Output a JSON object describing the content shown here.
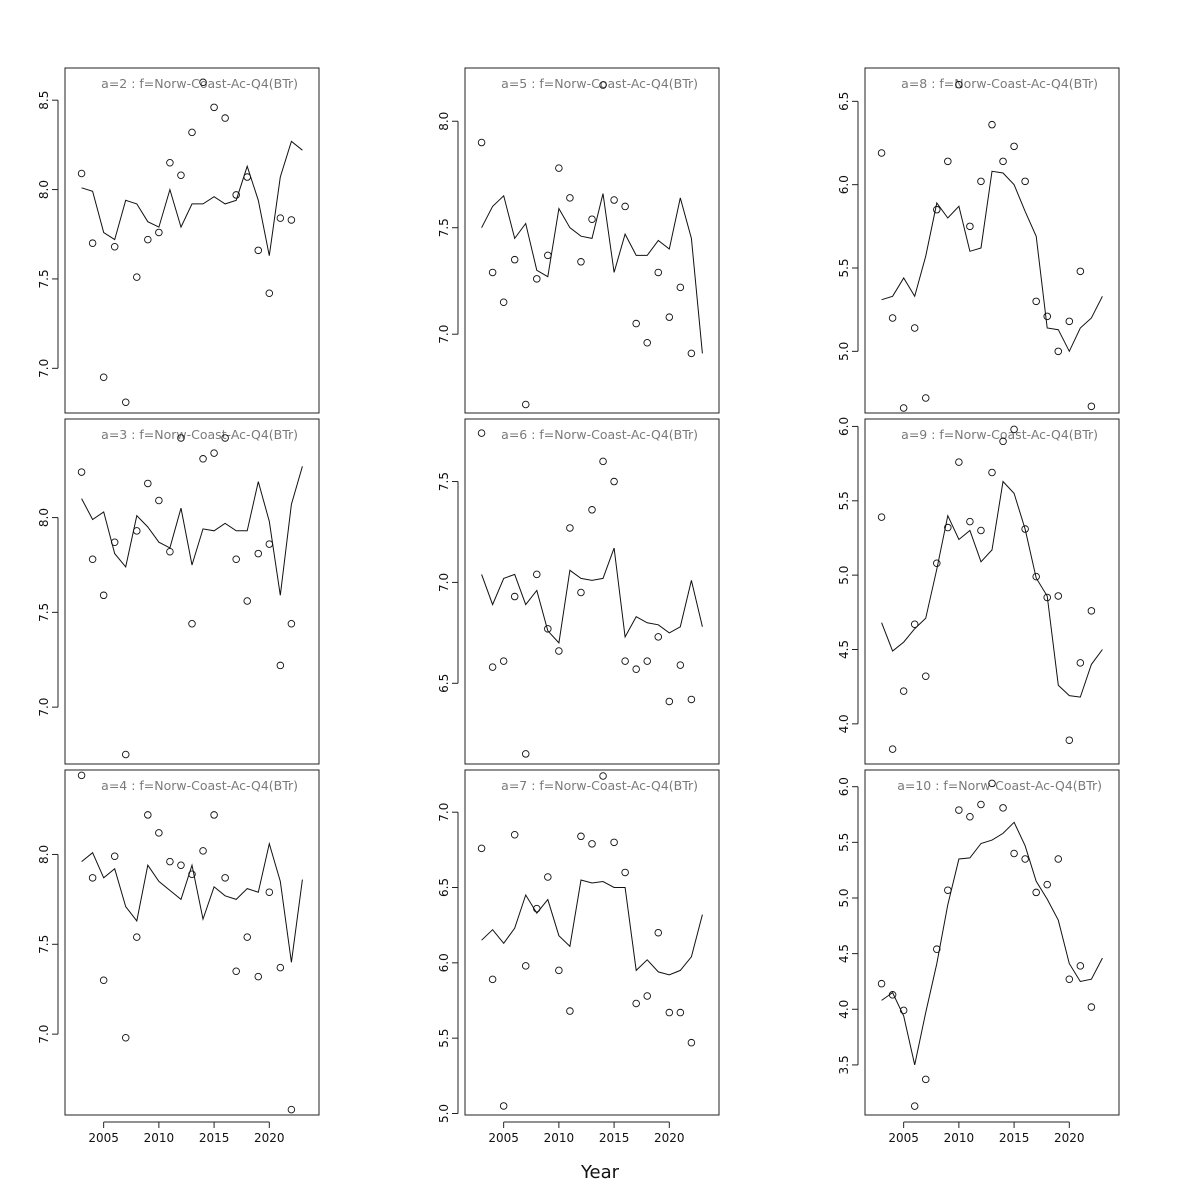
{
  "xlabel": "Year",
  "chart_data": [
    {
      "type": "line+scatter",
      "title": "a=2  :  f=Norw-Coast-Ac-Q4(BTr)",
      "xlim": [
        2001.5,
        2024.5
      ],
      "ylim": [
        6.75,
        8.68
      ],
      "yticks": [
        7.0,
        7.5,
        8.0,
        8.5
      ],
      "xticks": [
        2005,
        2010,
        2015,
        2020
      ],
      "show_x_ticks": false,
      "line": {
        "x": [
          2003,
          2004,
          2005,
          2006,
          2007,
          2008,
          2009,
          2010,
          2011,
          2012,
          2013,
          2014,
          2015,
          2016,
          2017,
          2018,
          2019,
          2020,
          2021,
          2022,
          2023
        ],
        "y": [
          8.01,
          7.99,
          7.76,
          7.72,
          7.94,
          7.92,
          7.82,
          7.79,
          8.0,
          7.79,
          7.92,
          7.92,
          7.96,
          7.92,
          7.94,
          8.13,
          7.94,
          7.63,
          8.07,
          8.27,
          8.22
        ]
      },
      "points": {
        "x": [
          2003,
          2004,
          2005,
          2006,
          2007,
          2008,
          2009,
          2010,
          2011,
          2012,
          2013,
          2014,
          2015,
          2016,
          2017,
          2018,
          2019,
          2020,
          2021,
          2022
        ],
        "y": [
          8.09,
          7.7,
          6.95,
          7.68,
          6.81,
          7.51,
          7.72,
          7.76,
          8.15,
          8.08,
          8.32,
          8.6,
          8.46,
          8.4,
          7.97,
          8.07,
          7.66,
          7.42,
          7.84,
          7.83
        ]
      }
    },
    {
      "type": "line+scatter",
      "title": "a=5  :  f=Norw-Coast-Ac-Q4(BTr)",
      "xlim": [
        2001.5,
        2024.5
      ],
      "ylim": [
        6.63,
        8.25
      ],
      "yticks": [
        7.0,
        7.5,
        8.0
      ],
      "xticks": [
        2005,
        2010,
        2015,
        2020
      ],
      "show_x_ticks": false,
      "line": {
        "x": [
          2003,
          2004,
          2005,
          2006,
          2007,
          2008,
          2009,
          2010,
          2011,
          2012,
          2013,
          2014,
          2015,
          2016,
          2017,
          2018,
          2019,
          2020,
          2021,
          2022,
          2023
        ],
        "y": [
          7.5,
          7.6,
          7.65,
          7.45,
          7.52,
          7.3,
          7.27,
          7.59,
          7.5,
          7.46,
          7.45,
          7.66,
          7.29,
          7.47,
          7.37,
          7.37,
          7.44,
          7.4,
          7.64,
          7.45,
          6.91
        ]
      },
      "points": {
        "x": [
          2003,
          2004,
          2005,
          2006,
          2007,
          2008,
          2009,
          2010,
          2011,
          2012,
          2013,
          2014,
          2015,
          2016,
          2017,
          2018,
          2019,
          2020,
          2021,
          2022
        ],
        "y": [
          7.9,
          7.29,
          7.15,
          7.35,
          6.67,
          7.26,
          7.37,
          7.78,
          7.64,
          7.34,
          7.54,
          8.17,
          7.63,
          7.6,
          7.05,
          6.96,
          7.29,
          7.08,
          7.22,
          6.91
        ]
      }
    },
    {
      "type": "line+scatter",
      "title": "a=8  :  f=Norw-Coast-Ac-Q4(BTr)",
      "xlim": [
        2001.5,
        2024.5
      ],
      "ylim": [
        4.63,
        6.7
      ],
      "yticks": [
        5.0,
        5.5,
        6.0,
        6.5
      ],
      "xticks": [
        2005,
        2010,
        2015,
        2020
      ],
      "show_x_ticks": false,
      "line": {
        "x": [
          2003,
          2004,
          2005,
          2006,
          2007,
          2008,
          2009,
          2010,
          2011,
          2012,
          2013,
          2014,
          2015,
          2016,
          2017,
          2018,
          2019,
          2020,
          2021,
          2022,
          2023
        ],
        "y": [
          5.31,
          5.33,
          5.44,
          5.33,
          5.57,
          5.89,
          5.8,
          5.87,
          5.6,
          5.62,
          6.08,
          6.07,
          6.0,
          5.84,
          5.69,
          5.14,
          5.13,
          5.0,
          5.14,
          5.2,
          5.33
        ]
      },
      "points": {
        "x": [
          2003,
          2004,
          2005,
          2006,
          2007,
          2008,
          2009,
          2010,
          2011,
          2012,
          2013,
          2014,
          2015,
          2016,
          2017,
          2018,
          2019,
          2020,
          2021,
          2022
        ],
        "y": [
          6.19,
          5.2,
          4.66,
          5.14,
          4.72,
          5.85,
          6.14,
          6.6,
          5.75,
          6.02,
          6.36,
          6.14,
          6.23,
          6.02,
          5.3,
          5.21,
          5.0,
          5.18,
          5.48,
          4.67
        ]
      }
    },
    {
      "type": "line+scatter",
      "title": "a=3  :  f=Norw-Coast-Ac-Q4(BTr)",
      "xlim": [
        2001.5,
        2024.5
      ],
      "ylim": [
        6.7,
        8.52
      ],
      "yticks": [
        7.0,
        7.5,
        8.0
      ],
      "xticks": [
        2005,
        2010,
        2015,
        2020
      ],
      "show_x_ticks": false,
      "line": {
        "x": [
          2003,
          2004,
          2005,
          2006,
          2007,
          2008,
          2009,
          2010,
          2011,
          2012,
          2013,
          2014,
          2015,
          2016,
          2017,
          2018,
          2019,
          2020,
          2021,
          2022,
          2023
        ],
        "y": [
          8.1,
          7.99,
          8.03,
          7.81,
          7.74,
          8.01,
          7.95,
          7.87,
          7.84,
          8.05,
          7.75,
          7.94,
          7.93,
          7.97,
          7.93,
          7.93,
          8.19,
          7.98,
          7.59,
          8.07,
          8.27
        ]
      },
      "points": {
        "x": [
          2003,
          2004,
          2005,
          2006,
          2007,
          2008,
          2009,
          2010,
          2011,
          2012,
          2013,
          2014,
          2015,
          2016,
          2017,
          2018,
          2019,
          2020,
          2021,
          2022
        ],
        "y": [
          8.24,
          7.78,
          7.59,
          7.87,
          6.75,
          7.93,
          8.18,
          8.09,
          7.82,
          8.42,
          7.44,
          8.31,
          8.34,
          8.42,
          7.78,
          7.56,
          7.81,
          7.86,
          7.22,
          7.44
        ]
      }
    },
    {
      "type": "line+scatter",
      "title": "a=6  :  f=Norw-Coast-Ac-Q4(BTr)",
      "xlim": [
        2001.5,
        2024.5
      ],
      "ylim": [
        6.1,
        7.81
      ],
      "yticks": [
        6.5,
        7.0,
        7.5
      ],
      "xticks": [
        2005,
        2010,
        2015,
        2020
      ],
      "show_x_ticks": false,
      "line": {
        "x": [
          2003,
          2004,
          2005,
          2006,
          2007,
          2008,
          2009,
          2010,
          2011,
          2012,
          2013,
          2014,
          2015,
          2016,
          2017,
          2018,
          2019,
          2020,
          2021,
          2022,
          2023
        ],
        "y": [
          7.04,
          6.89,
          7.02,
          7.04,
          6.89,
          6.96,
          6.76,
          6.7,
          7.06,
          7.02,
          7.01,
          7.02,
          7.17,
          6.73,
          6.83,
          6.8,
          6.79,
          6.75,
          6.78,
          7.01,
          6.78
        ]
      },
      "points": {
        "x": [
          2003,
          2004,
          2005,
          2006,
          2007,
          2008,
          2009,
          2010,
          2011,
          2012,
          2013,
          2014,
          2015,
          2016,
          2017,
          2018,
          2019,
          2020,
          2021,
          2022
        ],
        "y": [
          7.74,
          6.58,
          6.61,
          6.93,
          6.15,
          7.04,
          6.77,
          6.66,
          7.27,
          6.95,
          7.36,
          7.6,
          7.5,
          6.61,
          6.57,
          6.61,
          6.73,
          6.41,
          6.59,
          6.42
        ]
      }
    },
    {
      "type": "line+scatter",
      "title": "a=9  :  f=Norw-Coast-Ac-Q4(BTr)",
      "xlim": [
        2001.5,
        2024.5
      ],
      "ylim": [
        3.73,
        6.05
      ],
      "yticks": [
        4.0,
        4.5,
        5.0,
        5.5,
        6.0
      ],
      "xticks": [
        2005,
        2010,
        2015,
        2020
      ],
      "show_x_ticks": false,
      "line": {
        "x": [
          2003,
          2004,
          2005,
          2006,
          2007,
          2008,
          2009,
          2010,
          2011,
          2012,
          2013,
          2014,
          2015,
          2016,
          2017,
          2018,
          2019,
          2020,
          2021,
          2022,
          2023
        ],
        "y": [
          4.68,
          4.49,
          4.55,
          4.64,
          4.71,
          5.04,
          5.4,
          5.24,
          5.3,
          5.09,
          5.17,
          5.63,
          5.55,
          5.31,
          4.98,
          4.86,
          4.26,
          4.19,
          4.18,
          4.4,
          4.5
        ]
      },
      "points": {
        "x": [
          2003,
          2004,
          2005,
          2006,
          2007,
          2008,
          2009,
          2010,
          2011,
          2012,
          2013,
          2014,
          2015,
          2016,
          2017,
          2018,
          2019,
          2020,
          2021,
          2022
        ],
        "y": [
          5.39,
          3.83,
          4.22,
          4.67,
          4.32,
          5.08,
          5.32,
          5.76,
          5.36,
          5.3,
          5.69,
          5.9,
          5.98,
          5.31,
          4.99,
          4.85,
          4.86,
          3.89,
          4.41,
          4.76
        ]
      }
    },
    {
      "type": "line+scatter",
      "title": "a=4  :  f=Norw-Coast-Ac-Q4(BTr)",
      "xlim": [
        2001.5,
        2024.5
      ],
      "ylim": [
        6.55,
        8.47
      ],
      "yticks": [
        7.0,
        7.5,
        8.0
      ],
      "xticks": [
        2005,
        2010,
        2015,
        2020
      ],
      "show_x_ticks": true,
      "line": {
        "x": [
          2003,
          2004,
          2005,
          2006,
          2007,
          2008,
          2009,
          2010,
          2011,
          2012,
          2013,
          2014,
          2015,
          2016,
          2017,
          2018,
          2019,
          2020,
          2021,
          2022,
          2023
        ],
        "y": [
          7.96,
          8.01,
          7.87,
          7.92,
          7.71,
          7.63,
          7.94,
          7.85,
          7.8,
          7.75,
          7.94,
          7.64,
          7.82,
          7.77,
          7.75,
          7.81,
          7.79,
          8.06,
          7.85,
          7.4,
          7.86
        ]
      },
      "points": {
        "x": [
          2003,
          2004,
          2005,
          2006,
          2007,
          2008,
          2009,
          2010,
          2011,
          2012,
          2013,
          2014,
          2015,
          2016,
          2017,
          2018,
          2019,
          2020,
          2021,
          2022
        ],
        "y": [
          8.44,
          7.87,
          7.3,
          7.99,
          6.98,
          7.54,
          8.22,
          8.12,
          7.96,
          7.94,
          7.89,
          8.02,
          8.22,
          7.87,
          7.35,
          7.54,
          7.32,
          7.79,
          7.37,
          6.58
        ]
      }
    },
    {
      "type": "line+scatter",
      "title": "a=7  :  f=Norw-Coast-Ac-Q4(BTr)",
      "xlim": [
        2001.5,
        2024.5
      ],
      "ylim": [
        4.99,
        7.28
      ],
      "yticks": [
        5.0,
        5.5,
        6.0,
        6.5,
        7.0
      ],
      "xticks": [
        2005,
        2010,
        2015,
        2020
      ],
      "show_x_ticks": true,
      "line": {
        "x": [
          2003,
          2004,
          2005,
          2006,
          2007,
          2008,
          2009,
          2010,
          2011,
          2012,
          2013,
          2014,
          2015,
          2016,
          2017,
          2018,
          2019,
          2020,
          2021,
          2022,
          2023
        ],
        "y": [
          6.15,
          6.22,
          6.13,
          6.23,
          6.45,
          6.33,
          6.42,
          6.18,
          6.11,
          6.55,
          6.53,
          6.54,
          6.5,
          6.5,
          5.95,
          6.02,
          5.94,
          5.92,
          5.95,
          6.04,
          6.32
        ]
      },
      "points": {
        "x": [
          2003,
          2004,
          2005,
          2006,
          2007,
          2008,
          2009,
          2010,
          2011,
          2012,
          2013,
          2014,
          2015,
          2016,
          2017,
          2018,
          2019,
          2020,
          2021,
          2022
        ],
        "y": [
          6.76,
          5.89,
          5.05,
          6.85,
          5.98,
          6.36,
          6.57,
          5.95,
          5.68,
          6.84,
          6.79,
          7.24,
          6.8,
          6.6,
          5.73,
          5.78,
          6.2,
          5.67,
          5.67,
          5.47
        ]
      }
    },
    {
      "type": "line+scatter",
      "title": "a=10  :  f=Norw-Coast-Ac-Q4(BTr)",
      "xlim": [
        2001.5,
        2024.5
      ],
      "ylim": [
        3.05,
        6.15
      ],
      "yticks": [
        3.5,
        4.0,
        4.5,
        5.0,
        5.5,
        6.0
      ],
      "xticks": [
        2005,
        2010,
        2015,
        2020
      ],
      "show_x_ticks": true,
      "line": {
        "x": [
          2003,
          2004,
          2005,
          2006,
          2007,
          2008,
          2009,
          2010,
          2011,
          2012,
          2013,
          2014,
          2015,
          2016,
          2017,
          2018,
          2019,
          2020,
          2021,
          2022,
          2023
        ],
        "y": [
          4.08,
          4.15,
          3.94,
          3.5,
          3.97,
          4.41,
          4.94,
          5.35,
          5.36,
          5.49,
          5.52,
          5.58,
          5.68,
          5.47,
          5.15,
          4.99,
          4.8,
          4.41,
          4.25,
          4.27,
          4.46
        ]
      },
      "points": {
        "x": [
          2003,
          2004,
          2005,
          2006,
          2007,
          2008,
          2009,
          2010,
          2011,
          2012,
          2013,
          2014,
          2015,
          2016,
          2017,
          2018,
          2019,
          2020,
          2021,
          2022
        ],
        "y": [
          4.23,
          4.13,
          3.99,
          3.13,
          3.37,
          4.54,
          5.07,
          5.79,
          5.73,
          5.84,
          6.03,
          5.81,
          5.4,
          5.35,
          5.05,
          5.12,
          5.35,
          4.27,
          4.39,
          4.02
        ]
      }
    }
  ]
}
